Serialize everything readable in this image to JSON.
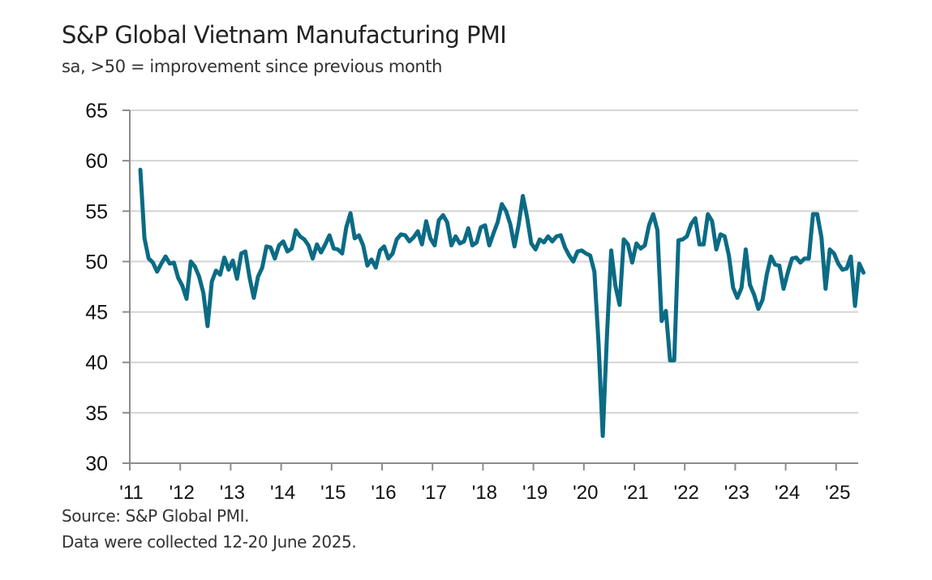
{
  "header": {
    "title": "S&P Global Vietnam Manufacturing PMI",
    "subtitle": "sa, >50 = improvement since previous month"
  },
  "footer": {
    "source": "Source: S&P Global PMI.",
    "note": "Data were collected 12-20 June 2025."
  },
  "chart_data": {
    "type": "line",
    "title": "S&P Global Vietnam Manufacturing PMI",
    "subtitle": "sa, >50 = improvement since previous month",
    "xlabel": "",
    "ylabel": "",
    "ylim": [
      30,
      65
    ],
    "yticks": [
      30,
      35,
      40,
      45,
      50,
      55,
      60,
      65
    ],
    "ytick_labels": [
      "30",
      "35",
      "40",
      "45",
      "50",
      "55",
      "60",
      "65"
    ],
    "xticks": [
      "'11",
      "'12",
      "'13",
      "'14",
      "'15",
      "'16",
      "'17",
      "'18",
      "'19",
      "'20",
      "'21",
      "'22",
      "'23",
      "'24",
      "'25"
    ],
    "x_start": "2011-03",
    "x_end": "2025-06",
    "frequency": "monthly",
    "grid": "horizontal",
    "legend": "none",
    "line_color": "#0b6b85",
    "series": [
      {
        "name": "Vietnam Manufacturing PMI",
        "values": [
          59.1,
          52.3,
          50.3,
          49.9,
          49.0,
          49.8,
          50.5,
          49.8,
          49.9,
          48.4,
          47.6,
          46.3,
          50.0,
          49.5,
          48.5,
          46.9,
          43.6,
          48.0,
          49.1,
          48.7,
          50.4,
          49.2,
          50.1,
          48.3,
          50.8,
          51.0,
          48.4,
          46.4,
          48.5,
          49.4,
          51.5,
          51.4,
          50.3,
          51.6,
          52.0,
          51.0,
          51.3,
          53.1,
          52.5,
          52.2,
          51.6,
          50.3,
          51.7,
          50.9,
          51.7,
          52.6,
          51.3,
          51.2,
          50.8,
          53.4,
          54.8,
          52.3,
          52.6,
          51.6,
          49.6,
          50.2,
          49.4,
          51.1,
          51.5,
          50.3,
          50.8,
          52.2,
          52.7,
          52.6,
          52.0,
          52.4,
          53.0,
          51.7,
          54.0,
          52.3,
          51.6,
          54.1,
          54.6,
          53.9,
          51.6,
          52.5,
          51.8,
          52.0,
          53.3,
          51.6,
          51.9,
          53.4,
          53.6,
          51.6,
          52.8,
          53.9,
          55.7,
          55.0,
          53.7,
          51.5,
          53.7,
          56.5,
          54.4,
          51.8,
          51.2,
          52.2,
          51.9,
          52.5,
          52.0,
          52.5,
          52.6,
          51.4,
          50.6,
          50.0,
          51.0,
          51.1,
          50.8,
          50.6,
          49.0,
          41.9,
          32.7,
          42.7,
          51.1,
          47.6,
          45.7,
          52.2,
          51.7,
          49.9,
          51.8,
          51.3,
          51.6,
          53.6,
          54.7,
          53.1,
          44.1,
          45.1,
          40.2,
          40.2,
          52.1,
          52.2,
          52.5,
          53.7,
          54.3,
          51.7,
          51.7,
          54.7,
          54.0,
          51.2,
          52.7,
          52.5,
          50.6,
          47.4,
          46.4,
          47.4,
          51.2,
          47.7,
          46.7,
          45.3,
          46.2,
          48.7,
          50.5,
          49.7,
          49.6,
          47.3,
          48.9,
          50.3,
          50.4,
          49.9,
          50.3,
          50.3,
          54.7,
          54.7,
          52.4,
          47.3,
          51.2,
          50.8,
          49.8,
          49.2,
          49.3,
          50.5,
          45.6,
          49.8,
          48.9
        ]
      }
    ]
  }
}
